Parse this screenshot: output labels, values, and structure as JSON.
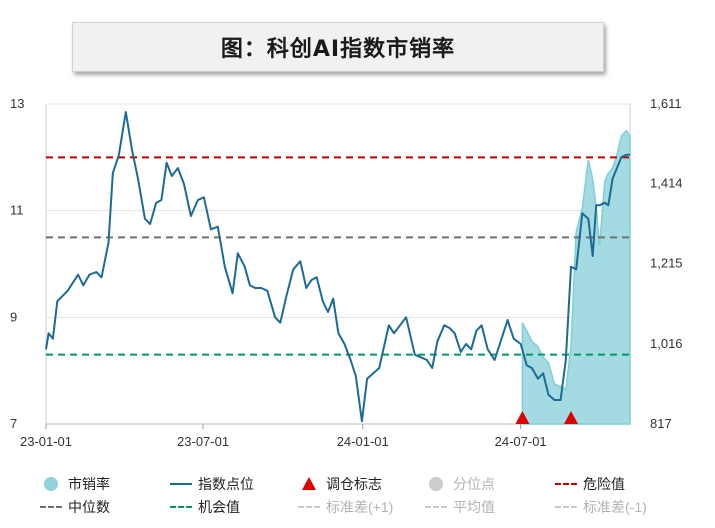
{
  "title": "图：科创AI指数市销率",
  "chart_data": {
    "type": "line",
    "x_tick_labels": [
      "23-01-01",
      "23-07-01",
      "24-01-01",
      "24-07-01"
    ],
    "x_tick_dates": [
      "2023-01-01",
      "2023-07-01",
      "2024-01-01",
      "2024-07-01"
    ],
    "x_range": [
      "2023-01-01",
      "2024-11-04"
    ],
    "left_axis": {
      "range": [
        7,
        13
      ],
      "ticks": [
        "13",
        "11",
        "9",
        "7"
      ],
      "tick_values": [
        13,
        11,
        9,
        7
      ]
    },
    "right_axis": {
      "range": [
        817,
        1611
      ],
      "ticks": [
        "1,611",
        "1,414",
        "1,215",
        "1,016",
        "817"
      ],
      "tick_values": [
        1611,
        1414,
        1215,
        1016,
        817
      ]
    },
    "reference_lines": [
      {
        "name": "危险值",
        "value": 12.0,
        "color": "#c00000",
        "style": "dash"
      },
      {
        "name": "中位数",
        "value": 10.5,
        "color": "#707070",
        "style": "dash"
      },
      {
        "name": "机会值",
        "value": 8.3,
        "color": "#009a60",
        "style": "dash"
      }
    ],
    "series": [
      {
        "name": "指数点位",
        "axis": "left",
        "color": "#1b6b95",
        "x": [
          "2023-01-01",
          "2023-01-04",
          "2023-01-09",
          "2023-01-14",
          "2023-01-26",
          "2023-02-07",
          "2023-02-13",
          "2023-02-20",
          "2023-02-28",
          "2023-03-06",
          "2023-03-14",
          "2023-03-19",
          "2023-03-26",
          "2023-04-03",
          "2023-04-10",
          "2023-04-17",
          "2023-04-25",
          "2023-05-01",
          "2023-05-08",
          "2023-05-14",
          "2023-05-20",
          "2023-05-26",
          "2023-06-02",
          "2023-06-09",
          "2023-06-17",
          "2023-06-25",
          "2023-07-02",
          "2023-07-10",
          "2023-07-18",
          "2023-07-26",
          "2023-08-04",
          "2023-08-10",
          "2023-08-18",
          "2023-08-24",
          "2023-08-30",
          "2023-09-06",
          "2023-09-13",
          "2023-09-22",
          "2023-09-28",
          "2023-10-05",
          "2023-10-13",
          "2023-10-21",
          "2023-10-28",
          "2023-11-03",
          "2023-11-09",
          "2023-11-16",
          "2023-11-22",
          "2023-11-28",
          "2023-12-04",
          "2023-12-11",
          "2023-12-18",
          "2023-12-24",
          "2023-12-31",
          "2024-01-06",
          "2024-01-20",
          "2024-01-31",
          "2024-02-06",
          "2024-02-13",
          "2024-02-20",
          "2024-03-01",
          "2024-03-08",
          "2024-03-15",
          "2024-03-21",
          "2024-03-27",
          "2024-04-04",
          "2024-04-10",
          "2024-04-16",
          "2024-04-23",
          "2024-04-29",
          "2024-05-05",
          "2024-05-11",
          "2024-05-17",
          "2024-05-24",
          "2024-06-01",
          "2024-06-08",
          "2024-06-16",
          "2024-06-23",
          "2024-07-01",
          "2024-07-08",
          "2024-07-14",
          "2024-07-21",
          "2024-07-27",
          "2024-08-02",
          "2024-08-09",
          "2024-08-16",
          "2024-08-22",
          "2024-08-28",
          "2024-09-03",
          "2024-09-10",
          "2024-09-17",
          "2024-09-22",
          "2024-09-26",
          "2024-09-30",
          "2024-10-06",
          "2024-10-10",
          "2024-10-15",
          "2024-10-20",
          "2024-10-25",
          "2024-10-31",
          "2024-11-04"
        ],
        "values": [
          8.4,
          8.7,
          8.6,
          9.3,
          9.5,
          9.8,
          9.6,
          9.8,
          9.85,
          9.75,
          10.4,
          11.7,
          12.05,
          12.85,
          12.15,
          11.6,
          10.85,
          10.75,
          11.15,
          11.2,
          11.9,
          11.65,
          11.8,
          11.5,
          10.9,
          11.2,
          11.25,
          10.65,
          10.7,
          9.95,
          9.45,
          10.2,
          9.95,
          9.6,
          9.55,
          9.55,
          9.5,
          9.0,
          8.9,
          9.4,
          9.9,
          10.05,
          9.55,
          9.7,
          9.75,
          9.3,
          9.1,
          9.35,
          8.7,
          8.5,
          8.2,
          7.9,
          7.05,
          7.85,
          8.05,
          8.85,
          8.7,
          8.85,
          9.0,
          8.3,
          8.25,
          8.2,
          8.05,
          8.55,
          8.85,
          8.8,
          8.7,
          8.35,
          8.5,
          8.4,
          8.75,
          8.85,
          8.4,
          8.2,
          8.55,
          8.95,
          8.6,
          8.5,
          8.1,
          8.05,
          7.85,
          7.95,
          7.55,
          7.45,
          7.45,
          8.2,
          9.95,
          9.9,
          10.95,
          10.85,
          10.15,
          11.1,
          11.1,
          11.15,
          11.1,
          11.6,
          11.8,
          12.0,
          12.05,
          12.05
        ]
      },
      {
        "name": "市销率",
        "axis": "left",
        "color": "#7fcfdb",
        "x": [
          "2024-07-03",
          "2024-07-08",
          "2024-07-14",
          "2024-07-21",
          "2024-07-27",
          "2024-08-02",
          "2024-08-09",
          "2024-08-16",
          "2024-08-22",
          "2024-08-28",
          "2024-09-03",
          "2024-09-10",
          "2024-09-17",
          "2024-09-22",
          "2024-09-26",
          "2024-09-30",
          "2024-10-06",
          "2024-10-10",
          "2024-10-15",
          "2024-10-20",
          "2024-10-25",
          "2024-10-31",
          "2024-11-04"
        ],
        "values": [
          8.9,
          8.75,
          8.55,
          8.45,
          8.25,
          8.15,
          7.75,
          7.7,
          7.65,
          8.45,
          10.6,
          11.05,
          11.95,
          11.6,
          11.05,
          10.35,
          11.55,
          11.7,
          11.8,
          12.05,
          12.4,
          12.5,
          12.4
        ]
      }
    ],
    "markers": {
      "name": "调仓标志",
      "color": "#e00000",
      "x": [
        "2024-07-03",
        "2024-08-28"
      ]
    },
    "legend": [
      "市销率",
      "指数点位",
      "调仓标志",
      "分位点",
      "危险值",
      "中位数",
      "机会值",
      "标准差(+1)",
      "平均值",
      "标准差(-1)"
    ],
    "legend_placement": "bottom",
    "grid": "horizontal-gray",
    "colors": {
      "index_line": "#1b6b95",
      "ps_fill": "#9ad6de",
      "ps_stroke": "#7fcfdb",
      "danger": "#c00000",
      "median": "#707070",
      "opportunity": "#009a60",
      "marker": "#e00000",
      "muted": "#cccccc"
    }
  }
}
